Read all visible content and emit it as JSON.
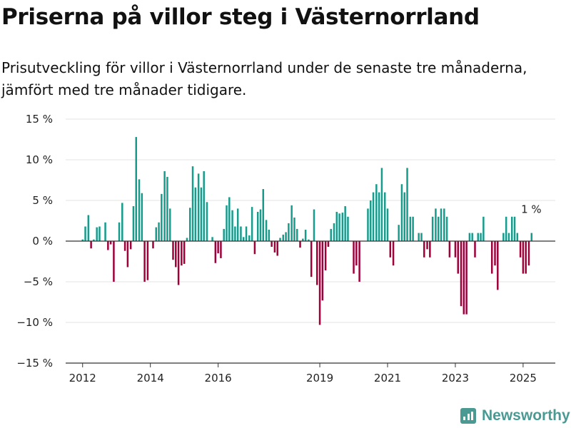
{
  "title": "Priserna på villor steg i Västernorrland",
  "subtitle": "Prisutveckling för villor i Västernorrland under de senaste tre månaderna, jämfört med tre månader tidigare.",
  "brand": {
    "name": "Newsworthy",
    "icon": "newsworthy-logo-icon",
    "color": "#4a9a93"
  },
  "chart_data": {
    "type": "bar",
    "title": "Priserna på villor steg i Västernorrland",
    "xlabel": "",
    "ylabel": "",
    "ylim": [
      -15,
      15
    ],
    "yticks": [
      15,
      10,
      5,
      0,
      -5,
      -10,
      -15
    ],
    "ytick_labels": [
      "15 %",
      "10 %",
      "5 %",
      "0 %",
      "−5 %",
      "−10 %",
      "−15 %"
    ],
    "xticks": [
      2012,
      2014,
      2016,
      2019,
      2021,
      2023,
      2025
    ],
    "xlim": [
      2011.5,
      2025.95
    ],
    "grid": true,
    "positive_color": "#169c8c",
    "negative_color": "#a0003a",
    "annotation": {
      "text": "1 %",
      "x": 2025.2,
      "y": 1
    },
    "series": [
      {
        "x": [
          2012.0,
          2012.08,
          2012.17,
          2012.25,
          2012.33,
          2012.42,
          2012.5,
          2012.58,
          2012.67,
          2012.75,
          2012.83,
          2012.92,
          2013.0,
          2013.08,
          2013.17,
          2013.25,
          2013.33,
          2013.42,
          2013.5,
          2013.58,
          2013.67,
          2013.75,
          2013.83,
          2013.92,
          2014.0,
          2014.08,
          2014.17,
          2014.25,
          2014.33,
          2014.42,
          2014.5,
          2014.58,
          2014.67,
          2014.75,
          2014.83,
          2014.92,
          2015.0,
          2015.08,
          2015.17,
          2015.25,
          2015.33,
          2015.42,
          2015.5,
          2015.58,
          2015.67,
          2015.75,
          2015.83,
          2015.92,
          2016.0,
          2016.08,
          2016.17,
          2016.25,
          2016.33,
          2016.42,
          2016.5,
          2016.58,
          2016.67,
          2016.75,
          2016.83,
          2016.92,
          2017.0,
          2017.08,
          2017.17,
          2017.25,
          2017.33,
          2017.42,
          2017.5,
          2017.58,
          2017.67,
          2017.75,
          2017.83,
          2017.92,
          2018.0,
          2018.08,
          2018.17,
          2018.25,
          2018.33,
          2018.42,
          2018.5,
          2018.58,
          2018.67,
          2018.75,
          2018.83,
          2018.92,
          2019.0,
          2019.08,
          2019.17,
          2019.25,
          2019.33,
          2019.42,
          2019.5,
          2019.58,
          2019.67,
          2019.75,
          2019.83,
          2019.92,
          2020.0,
          2020.08,
          2020.17,
          2020.25,
          2020.33,
          2020.42,
          2020.5,
          2020.58,
          2020.67,
          2020.75,
          2020.83,
          2020.92,
          2021.0,
          2021.08,
          2021.17,
          2021.25,
          2021.33,
          2021.42,
          2021.5,
          2021.58,
          2021.67,
          2021.75,
          2021.83,
          2021.92,
          2022.0,
          2022.08,
          2022.17,
          2022.25,
          2022.33,
          2022.42,
          2022.5,
          2022.58,
          2022.67,
          2022.75,
          2022.83,
          2022.92,
          2023.0,
          2023.08,
          2023.17,
          2023.25,
          2023.33,
          2023.42,
          2023.5,
          2023.58,
          2023.67,
          2023.75,
          2023.83,
          2023.92,
          2024.0,
          2024.08,
          2024.17,
          2024.25,
          2024.33,
          2024.42,
          2024.5,
          2024.58,
          2024.67,
          2024.75,
          2024.83,
          2024.92,
          2025.0,
          2025.08,
          2025.17,
          2025.25
        ],
        "values": [
          0.2,
          1.8,
          3.2,
          -0.9,
          0.2,
          1.7,
          1.8,
          0,
          2.3,
          -1.1,
          -0.4,
          -5.0,
          0,
          2.3,
          4.7,
          -1.2,
          -3.2,
          -1.0,
          4.3,
          12.8,
          7.6,
          5.9,
          -5.0,
          -4.8,
          0,
          -0.9,
          1.7,
          2.3,
          5.8,
          8.6,
          7.9,
          4.0,
          -2.3,
          -3.2,
          -5.4,
          -3.0,
          -2.8,
          0.4,
          4.1,
          9.2,
          6.6,
          8.3,
          6.6,
          8.6,
          4.8,
          0,
          0.5,
          -2.7,
          -1.5,
          -2.1,
          1.5,
          4.4,
          5.4,
          3.8,
          1.8,
          4.0,
          1.8,
          0.5,
          1.8,
          0.7,
          4.2,
          -1.6,
          3.6,
          3.9,
          6.4,
          2.6,
          1.4,
          -0.7,
          -1.4,
          -1.8,
          0.4,
          0.8,
          1.1,
          2.2,
          4.4,
          2.9,
          1.5,
          -0.8,
          0.3,
          1.4,
          0.2,
          -4.4,
          3.9,
          -5.4,
          -10.3,
          -7.3,
          -3.6,
          -0.7,
          1.5,
          2.2,
          3.6,
          3.4,
          3.5,
          4.3,
          3.0,
          0,
          -4.0,
          -3.0,
          -5.0,
          0,
          0,
          4.0,
          5.0,
          6.0,
          7.0,
          6.0,
          9.0,
          6.0,
          4.0,
          -2.0,
          -3.0,
          0,
          2.0,
          7.0,
          6.0,
          9.0,
          3.0,
          3.0,
          0,
          1.0,
          1.0,
          -2.0,
          -1.0,
          -2.0,
          3.0,
          4.0,
          3.0,
          4.0,
          4.0,
          3.0,
          -2.0,
          0,
          -2.0,
          -4.0,
          -8.0,
          -9.0,
          -9.0,
          1.0,
          1.0,
          -2.0,
          1.0,
          1.0,
          3.0,
          0,
          0,
          -4.0,
          -3.0,
          -6.0,
          0,
          1.0,
          3.0,
          1.0,
          3.0,
          3.0,
          1.0,
          -2.0,
          -4.0,
          -4.0,
          -3.0,
          1.0
        ]
      }
    ]
  }
}
